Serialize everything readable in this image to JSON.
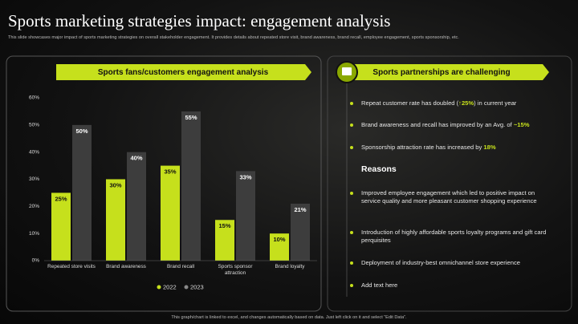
{
  "title": "Sports marketing strategies impact: engagement analysis",
  "subtitle": "This slide showcases major impact of sports marketing strategies on overall stakeholder engagement. It provides details about repeated store visit, brand awareness, brand recall, employee engagement, sports sponsorship, etc.",
  "chart_data": {
    "type": "bar",
    "title": "Sports fans/customers engagement analysis",
    "categories": [
      "Repeated store visits",
      "Brand awareness",
      "Brand recall",
      "Sports sponsor attraction",
      "Brand loyalty"
    ],
    "series": [
      {
        "name": "2022",
        "color": "#c6e01c",
        "values": [
          25,
          30,
          35,
          15,
          10
        ],
        "value_labels": [
          "25%",
          "30%",
          "35%",
          "15%",
          "10%"
        ]
      },
      {
        "name": "2023",
        "color": "#3d3d3d",
        "values": [
          50,
          40,
          55,
          33,
          21
        ],
        "value_labels": [
          "50%",
          "40%",
          "55%",
          "33%",
          "21%"
        ]
      }
    ],
    "ylim": [
      0,
      60
    ],
    "yticks": [
      {
        "value": 0,
        "label": "0%"
      },
      {
        "value": 10,
        "label": "10%"
      },
      {
        "value": 20,
        "label": "20%"
      },
      {
        "value": 30,
        "label": "30%"
      },
      {
        "value": 40,
        "label": "40%"
      },
      {
        "value": 50,
        "label": "50%"
      },
      {
        "value": 60,
        "label": "60%"
      }
    ],
    "grid": false,
    "legend": "bottom"
  },
  "side_panel": {
    "title": "Sports partnerships are challenging",
    "bullets": [
      {
        "parts": [
          "Repeat customer rate has doubled (",
          {
            "em": "↑25%"
          },
          ") in current year"
        ]
      },
      {
        "parts": [
          "Brand awareness and recall has improved by an Avg. of ",
          {
            "em": "~15%"
          }
        ]
      },
      {
        "parts": [
          "Sponsorship attraction rate has increased by ",
          {
            "em": "18%"
          }
        ]
      }
    ],
    "reasons_title": "Reasons",
    "reasons": [
      "Improved employee engagement which led to positive impact on service quality and more pleasant customer shopping experience",
      "Introduction of highly affordable sports loyalty programs and gift card perquisites",
      "Deployment of industry-best omnichannel store experience",
      "Add text here"
    ]
  },
  "footer": "This graph/chart is linked to excel, and changes automatically based on data. Just left click on it and select “Edit Data”."
}
